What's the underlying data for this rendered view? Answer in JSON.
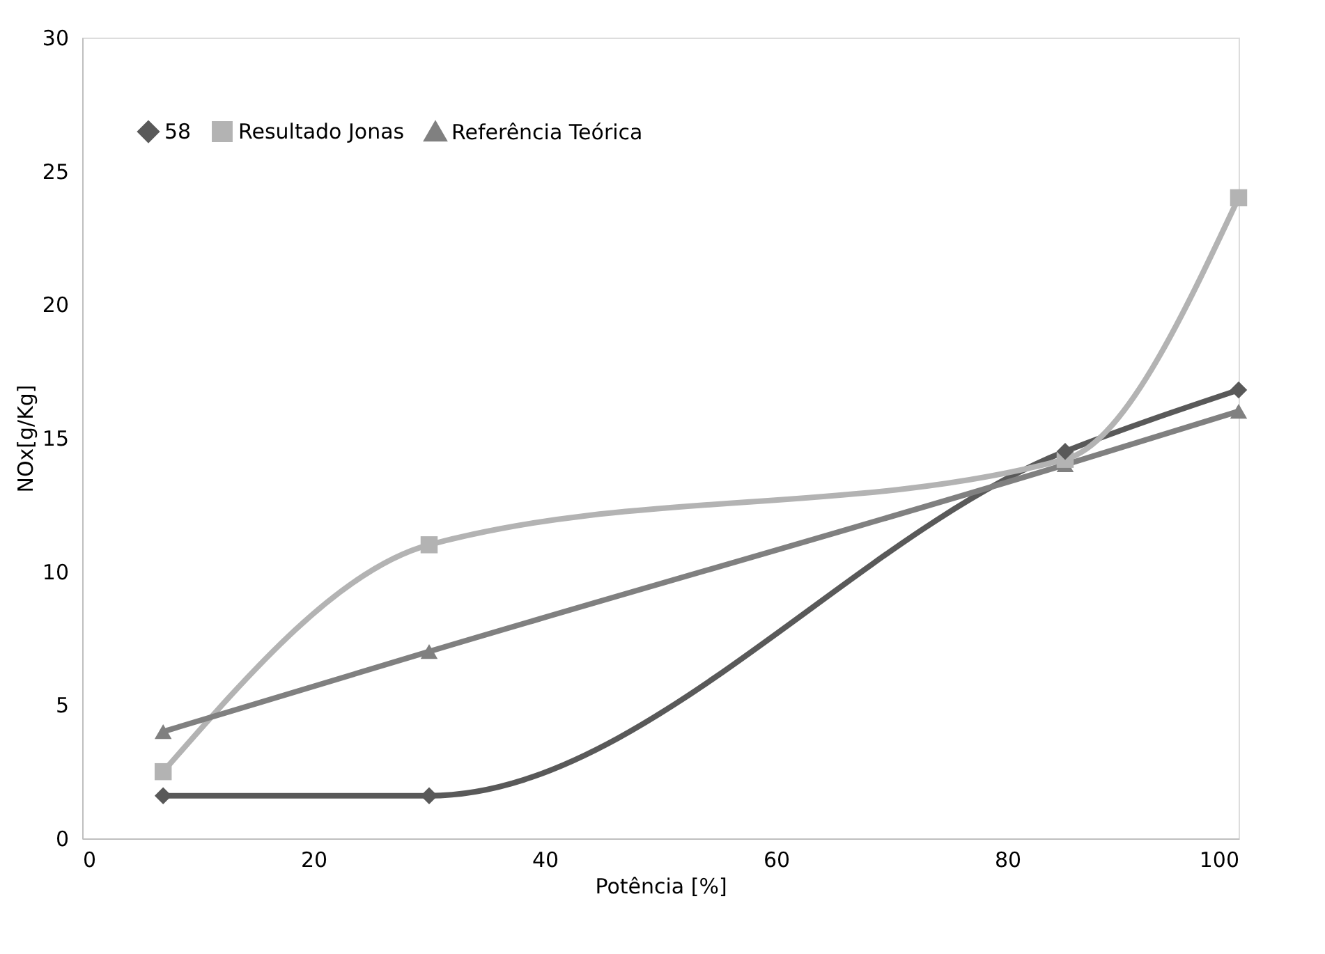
{
  "chart_data": {
    "type": "line",
    "xlabel": "Potência [%]",
    "ylabel": "NOx[g/Kg]",
    "x": [
      7,
      30,
      85,
      100
    ],
    "series": [
      {
        "name": "58",
        "color": "#595959",
        "marker": "diamond",
        "values": [
          1.6,
          1.6,
          14.5,
          16.8
        ]
      },
      {
        "name": "Resultado Jonas",
        "color": "#b3b3b3",
        "marker": "square",
        "values": [
          2.5,
          11,
          14.2,
          24
        ]
      },
      {
        "name": "Referência Teórica",
        "color": "#808080",
        "marker": "triangle",
        "values": [
          4,
          7,
          14,
          16
        ]
      }
    ],
    "xlim": [
      0,
      100
    ],
    "xticks": [
      0,
      20,
      40,
      60,
      80,
      100
    ],
    "ylim": [
      0,
      30
    ],
    "yticks": [
      0,
      5,
      10,
      15,
      20,
      25,
      30
    ],
    "grid": false,
    "legend": "top",
    "line_style": "solid"
  }
}
